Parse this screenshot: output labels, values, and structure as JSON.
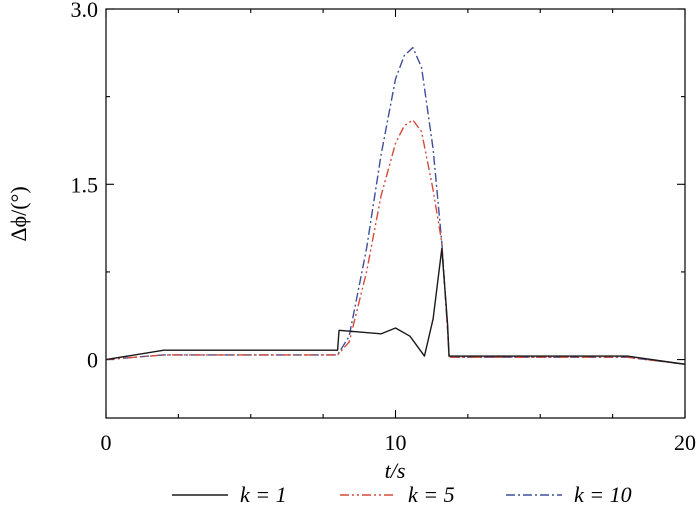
{
  "chart_data": {
    "type": "line",
    "xlabel": "t/s",
    "ylabel": "Δϕ/(°)",
    "xlim": [
      0,
      20
    ],
    "ylim": [
      -0.5,
      3.0
    ],
    "xticks": [
      0,
      10,
      20
    ],
    "xtick_labels": [
      "0",
      "10",
      "20"
    ],
    "yticks": [
      0,
      1.5,
      3.0
    ],
    "ytick_labels": [
      "0",
      "1.5",
      "3.0"
    ],
    "grid": false,
    "legend_position": "bottom",
    "series": [
      {
        "name": "k = 1",
        "color": "#1a1a1a",
        "dash": "solid",
        "x": [
          0,
          2,
          8,
          8.05,
          9.5,
          10,
          10.5,
          11,
          11.3,
          11.6,
          11.8,
          11.85,
          18,
          20
        ],
        "y": [
          0,
          0.08,
          0.08,
          0.25,
          0.22,
          0.27,
          0.2,
          0.03,
          0.35,
          0.95,
          0.3,
          0.03,
          0.03,
          -0.04
        ]
      },
      {
        "name": "k = 5",
        "color": "#d24b3a",
        "dash": "dash-dot-dot",
        "x": [
          0,
          2,
          8,
          8.4,
          9,
          9.5,
          10,
          10.3,
          10.6,
          10.9,
          11.3,
          11.6,
          11.8,
          11.85,
          18,
          20
        ],
        "y": [
          0,
          0.04,
          0.04,
          0.15,
          0.75,
          1.4,
          1.85,
          2.0,
          2.05,
          1.95,
          1.45,
          1.0,
          0.25,
          0.02,
          0.02,
          -0.04
        ]
      },
      {
        "name": "k = 10",
        "color": "#3f4f9a",
        "dash": "dash-dot",
        "x": [
          0,
          2,
          8,
          8.4,
          9,
          9.5,
          10,
          10.3,
          10.6,
          10.9,
          11.3,
          11.6,
          11.8,
          11.85,
          18,
          20
        ],
        "y": [
          0,
          0.04,
          0.04,
          0.2,
          0.95,
          1.75,
          2.4,
          2.6,
          2.67,
          2.5,
          1.8,
          1.0,
          0.25,
          0.02,
          0.02,
          -0.04
        ]
      }
    ]
  }
}
